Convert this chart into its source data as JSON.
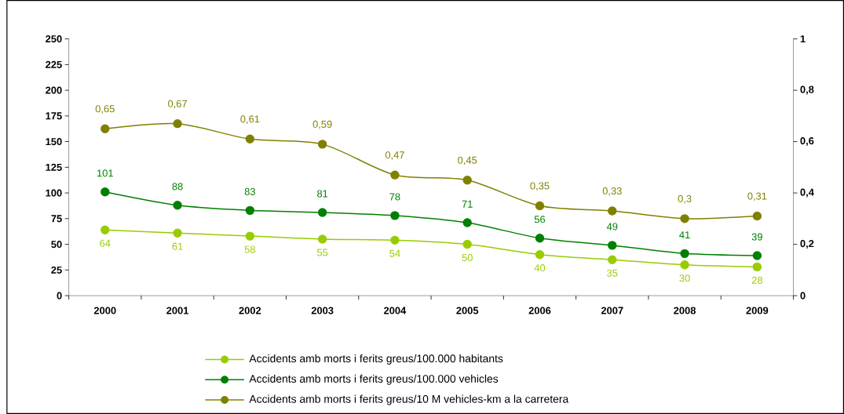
{
  "chart_data": {
    "type": "line",
    "categories": [
      "2000",
      "2001",
      "2002",
      "2003",
      "2004",
      "2005",
      "2006",
      "2007",
      "2008",
      "2009"
    ],
    "ylim": [
      0,
      250
    ],
    "yticks": [
      0,
      25,
      50,
      75,
      100,
      125,
      150,
      175,
      200,
      225,
      250
    ],
    "y2lim": [
      0,
      1
    ],
    "y2ticks": [
      0,
      {
        "value": 0.2,
        "label": "0,2"
      },
      {
        "value": 0.4,
        "label": "0,4"
      },
      {
        "value": 0.6,
        "label": "0,6"
      },
      {
        "value": 0.8,
        "label": "0,8"
      },
      1
    ],
    "marker": "circle",
    "legend": "bottom",
    "series": [
      {
        "name": "Accidents amb morts i ferits greus/100.000 habitants",
        "color": "#99cc00",
        "values": [
          64,
          61,
          58,
          55,
          54,
          50,
          40,
          35,
          30,
          28
        ],
        "value_labels": [
          "64",
          "61",
          "58",
          "55",
          "54",
          "50",
          "40",
          "35",
          "30",
          "28"
        ]
      },
      {
        "name": "Accidents amb morts i ferits greus/100.000 vehicles",
        "color": "#008000",
        "values": [
          101,
          88,
          83,
          81,
          78,
          71,
          56,
          49,
          41,
          39
        ],
        "value_labels": [
          "101",
          "88",
          "83",
          "81",
          "78",
          "71",
          "56",
          "49",
          "41",
          "39"
        ]
      },
      {
        "name": "Accidents amb morts i ferits greus/10 M vehicles-km a la carretera",
        "color": "#808000",
        "axis": "y2",
        "values": [
          0.65,
          0.67,
          0.61,
          0.59,
          0.47,
          0.45,
          0.35,
          0.33,
          0.3,
          0.31
        ],
        "value_labels": [
          "0,65",
          "0,67",
          "0,61",
          "0,59",
          "0,47",
          "0,45",
          "0,35",
          "0,33",
          "0,3",
          "0,31"
        ]
      }
    ]
  }
}
